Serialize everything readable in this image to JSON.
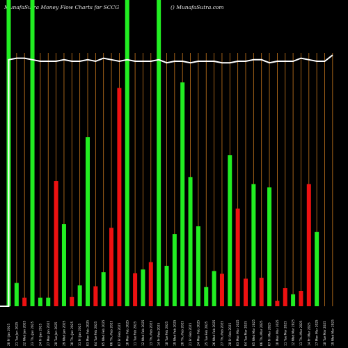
{
  "title_left": "MunafaSutra  Money Flow  Charts for SCCG",
  "title_right": "() MunafaSutra.com",
  "colors": {
    "background": "#000000",
    "grid": "#c8781e",
    "up": "#22ee22",
    "down": "#ee1111",
    "line": "#ffffff",
    "text": "#e8e8e8"
  },
  "chart_data": {
    "type": "bar",
    "title": "MunafaSutra  Money Flow  Charts for SCCG",
    "ylim": [
      0,
      100
    ],
    "grid": "vertical",
    "categories": [
      "20 Fri Jan 2025",
      "21 Tue Jan 2025",
      "22 Wed Jan 2025",
      "23 Thu Jan 2025",
      "24 Fri Jan 2025",
      "27 Mon Jan 2025",
      "28 Tue Jan 2025",
      "29 Wed Jan 2025",
      "30 Thu Jan 2025",
      "31 Fri Jan 2025",
      "03 Mon Feb 2025",
      "04 Tue Feb 2025",
      "05 Wed Feb 2025",
      "06 Thu Feb 2025",
      "07 Fri Feb 2025",
      "10 Mon Feb 2025",
      "11 Tue Feb 2025",
      "12 Wed Feb 2025",
      "13 Thu Feb 2025",
      "14 Fri Feb 2025",
      "18 Tue Feb 2025",
      "19 Wed Feb 2025",
      "20 Thu Feb 2025",
      "21 Fri Feb 2025",
      "24 Mon Feb 2025",
      "25 Tue Feb 2025",
      "26 Wed Feb 2025",
      "27 Thu Feb 2025",
      "28 Fri Feb 2025",
      "03 Mon Mar 2025",
      "04 Tue Mar 2025",
      "05 Wed Mar 2025",
      "06 Thu Mar 2025",
      "07 Fri Mar 2025",
      "10 Mon Mar 2025",
      "11 Tue Mar 2025",
      "12 Wed Mar 2025",
      "13 Thu Mar 2025",
      "14 Fri Mar 2025",
      "17 Mon Mar 2025",
      "18 Tue Mar 2025",
      "19 Wed Mar 2025"
    ],
    "values": [
      100,
      7.6,
      2.8,
      100,
      2.8,
      2.8,
      40.9,
      26.8,
      3.0,
      6.8,
      55.2,
      6.5,
      11.1,
      25.6,
      71.3,
      100,
      10.8,
      12.0,
      14.4,
      100,
      13.2,
      23.6,
      73.1,
      42.2,
      26.1,
      6.3,
      11.5,
      10.6,
      49.3,
      31.9,
      9.0,
      39.9,
      9.3,
      38.8,
      1.8,
      5.9,
      3.9,
      5.0,
      39.9,
      24.3,
      0,
      0
    ],
    "directions": [
      "up",
      "up",
      "down",
      "up",
      "up",
      "up",
      "down",
      "up",
      "down",
      "up",
      "up",
      "down",
      "up",
      "down",
      "down",
      "up",
      "down",
      "up",
      "down",
      "up",
      "up",
      "up",
      "up",
      "up",
      "up",
      "up",
      "up",
      "down",
      "up",
      "down",
      "down",
      "up",
      "down",
      "up",
      "down",
      "down",
      "up",
      "down",
      "down",
      "up",
      "up",
      "up"
    ],
    "series": [
      {
        "type": "line",
        "values": [
          80.5,
          81.0,
          81.0,
          80.5,
          80.0,
          80.0,
          80.0,
          80.5,
          80.0,
          80.0,
          80.5,
          80.0,
          81.0,
          80.5,
          80.0,
          80.5,
          80.0,
          80.0,
          80.0,
          80.5,
          79.5,
          80.0,
          80.0,
          79.5,
          80.0,
          80.0,
          80.0,
          79.5,
          79.5,
          80.0,
          80.0,
          80.5,
          80.5,
          79.5,
          80.0,
          80.0,
          80.0,
          81.0,
          80.5,
          80.0,
          80.0,
          82.0
        ]
      }
    ]
  }
}
